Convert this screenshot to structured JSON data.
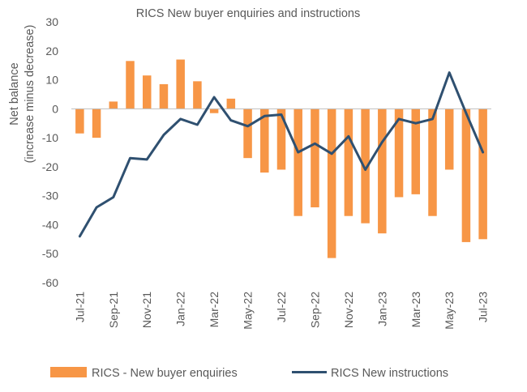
{
  "chart_data": {
    "type": "bar",
    "title": "RICS New buyer enquiries and instructions",
    "ylabel_lines": [
      "Net balance",
      "(increase minus decrease)"
    ],
    "xlabel": "",
    "ylim": [
      -60,
      30
    ],
    "yticks": [
      30,
      20,
      10,
      0,
      -10,
      -20,
      -30,
      -40,
      -50,
      -60
    ],
    "grid": false,
    "legend_position": "bottom",
    "categories": [
      "Jul-21",
      "Aug-21",
      "Sep-21",
      "Oct-21",
      "Nov-21",
      "Dec-21",
      "Jan-22",
      "Feb-22",
      "Mar-22",
      "Apr-22",
      "May-22",
      "Jun-22",
      "Jul-22",
      "Aug-22",
      "Sep-22",
      "Oct-22",
      "Nov-22",
      "Dec-22",
      "Jan-23",
      "Feb-23",
      "Mar-23",
      "Apr-23",
      "May-23",
      "Jun-23",
      "Jul-23"
    ],
    "tick_labels": [
      "Jul-21",
      "",
      "Sep-21",
      "",
      "Nov-21",
      "",
      "Jan-22",
      "",
      "Mar-22",
      "",
      "May-22",
      "",
      "Jul-22",
      "",
      "Sep-22",
      "",
      "Nov-22",
      "",
      "Jan-23",
      "",
      "Mar-23",
      "",
      "May-23",
      "",
      "Jul-23"
    ],
    "series": [
      {
        "name": "RICS  - New buyer enquiries",
        "kind": "bar",
        "color": "#F79646",
        "values": [
          -8.5,
          -10,
          2.5,
          16.5,
          11.5,
          8.5,
          17,
          9.5,
          -1.5,
          3.5,
          -17,
          -22,
          -21,
          -37,
          -34,
          -51.5,
          -37,
          -39.5,
          -43,
          -30.5,
          -29.5,
          -37,
          -21,
          -46,
          -45
        ]
      },
      {
        "name": "RICS New instructions",
        "kind": "line",
        "color": "#2F5070",
        "values": [
          -44,
          -34,
          -30.5,
          -17,
          -17.5,
          -9,
          -3.5,
          -5.5,
          4,
          -4,
          -6,
          -2.5,
          -2,
          -15,
          -12,
          -15.5,
          -9.5,
          -21,
          -11.5,
          -3.5,
          -5,
          -3.5,
          12.5,
          -1.5,
          -15
        ]
      }
    ]
  }
}
